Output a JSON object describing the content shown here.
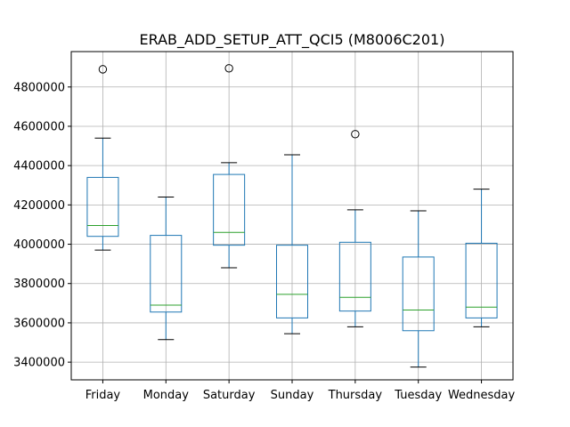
{
  "chart_data": {
    "type": "boxplot",
    "title": "ERAB_ADD_SETUP_ATT_QCI5 (M8006C201)",
    "xlabel": "",
    "ylabel": "",
    "ylim": [
      3310000,
      4980000
    ],
    "yticks": [
      3400000,
      3600000,
      3800000,
      4000000,
      4200000,
      4400000,
      4600000,
      4800000
    ],
    "ytick_labels": [
      "3400000",
      "3600000",
      "3800000",
      "4000000",
      "4200000",
      "4400000",
      "4600000",
      "4800000"
    ],
    "grid": true,
    "categories": [
      "Friday",
      "Monday",
      "Saturday",
      "Sunday",
      "Thursday",
      "Tuesday",
      "Wednesday"
    ],
    "boxes": [
      {
        "whisker_low": 3970000,
        "q1": 4040000,
        "median": 4095000,
        "q3": 4340000,
        "whisker_high": 4540000,
        "outliers": [
          4890000
        ]
      },
      {
        "whisker_low": 3515000,
        "q1": 3655000,
        "median": 3690000,
        "q3": 4045000,
        "whisker_high": 4240000,
        "outliers": []
      },
      {
        "whisker_low": 3880000,
        "q1": 3995000,
        "median": 4060000,
        "q3": 4355000,
        "whisker_high": 4415000,
        "outliers": [
          4895000
        ]
      },
      {
        "whisker_low": 3545000,
        "q1": 3625000,
        "median": 3745000,
        "q3": 3995000,
        "whisker_high": 4455000,
        "outliers": []
      },
      {
        "whisker_low": 3580000,
        "q1": 3660000,
        "median": 3730000,
        "q3": 4010000,
        "whisker_high": 4175000,
        "outliers": [
          4560000
        ]
      },
      {
        "whisker_low": 3375000,
        "q1": 3560000,
        "median": 3665000,
        "q3": 3935000,
        "whisker_high": 4170000,
        "outliers": []
      },
      {
        "whisker_low": 3580000,
        "q1": 3625000,
        "median": 3680000,
        "q3": 4005000,
        "whisker_high": 4280000,
        "outliers": []
      }
    ],
    "colors": {
      "box": "#1f77b4",
      "median": "#2ca02c",
      "whisker": "#1f77b4",
      "cap": "#000000",
      "outlier": "#000000",
      "grid": "#b0b0b0",
      "axis": "#000000"
    }
  }
}
